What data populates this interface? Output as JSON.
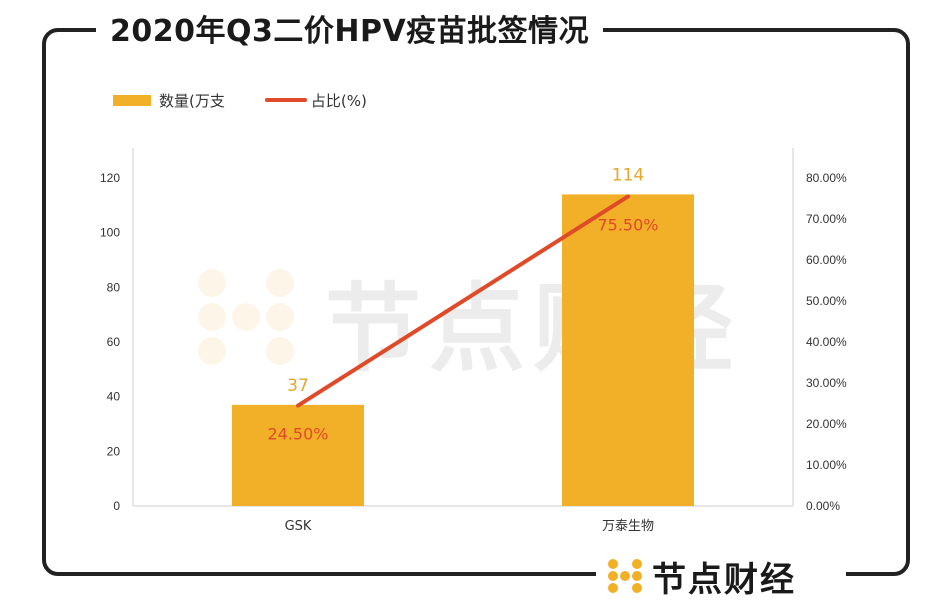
{
  "title": "2020年Q3二价HPV疫苗批签情况",
  "legend": {
    "bar_label": "数量(万支",
    "line_label": "占比(%)"
  },
  "brand": {
    "name": "节点财经",
    "watermark": "节点财经"
  },
  "colors": {
    "bar": "#F2AF28",
    "line": "#E04A28",
    "bar_label": "#E5A62A",
    "line_label": "#E04A28"
  },
  "chart_data": {
    "type": "bar",
    "categories": [
      "GSK",
      "万泰生物"
    ],
    "series": [
      {
        "name": "数量(万支",
        "type": "bar",
        "axis": "left",
        "values": [
          37,
          114
        ],
        "labels": [
          "37",
          "114"
        ]
      },
      {
        "name": "占比(%)",
        "type": "line",
        "axis": "right",
        "values": [
          24.5,
          75.5
        ],
        "labels": [
          "24.50%",
          "75.50%"
        ]
      }
    ],
    "y_left": {
      "min": 0,
      "max": 120,
      "ticks": [
        "0",
        "20",
        "40",
        "60",
        "80",
        "100",
        "120"
      ]
    },
    "y_right": {
      "min": 0,
      "max": 80,
      "ticks": [
        "0.00%",
        "10.00%",
        "20.00%",
        "30.00%",
        "40.00%",
        "50.00%",
        "60.00%",
        "70.00%",
        "80.00%"
      ]
    },
    "legend_position": "top-left",
    "grid": false
  }
}
